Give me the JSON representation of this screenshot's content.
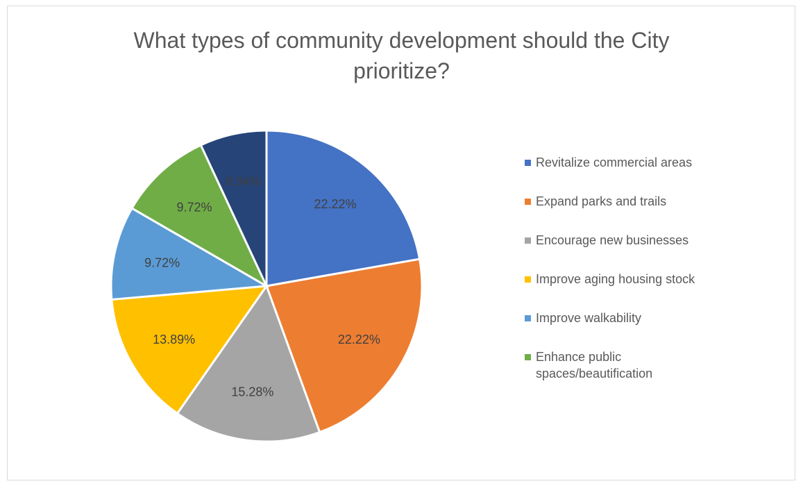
{
  "chart_data": {
    "type": "pie",
    "title": "What types of community development should the City prioritize?",
    "categories": [
      "Revitalize commercial areas",
      "Expand parks and trails",
      "Encourage new businesses",
      "Improve aging housing stock",
      "Improve walkability",
      "Enhance public spaces/beautification",
      ""
    ],
    "values": [
      22.22,
      22.22,
      15.28,
      13.89,
      9.72,
      9.72,
      6.94
    ],
    "labels": [
      "22.22%",
      "22.22%",
      "15.28%",
      "13.89%",
      "9.72%",
      "9.72%",
      "6.94%"
    ],
    "colors": [
      "#4472C4",
      "#ED7D31",
      "#A5A5A5",
      "#FFC000",
      "#5B9BD5",
      "#70AD47",
      "#264478"
    ],
    "legend_position": "right",
    "legend_entries": [
      "Revitalize commercial areas",
      "Expand parks and trails",
      "Encourage new businesses",
      "Improve aging housing stock",
      "Improve walkability",
      "Enhance public spaces/beautification"
    ]
  }
}
